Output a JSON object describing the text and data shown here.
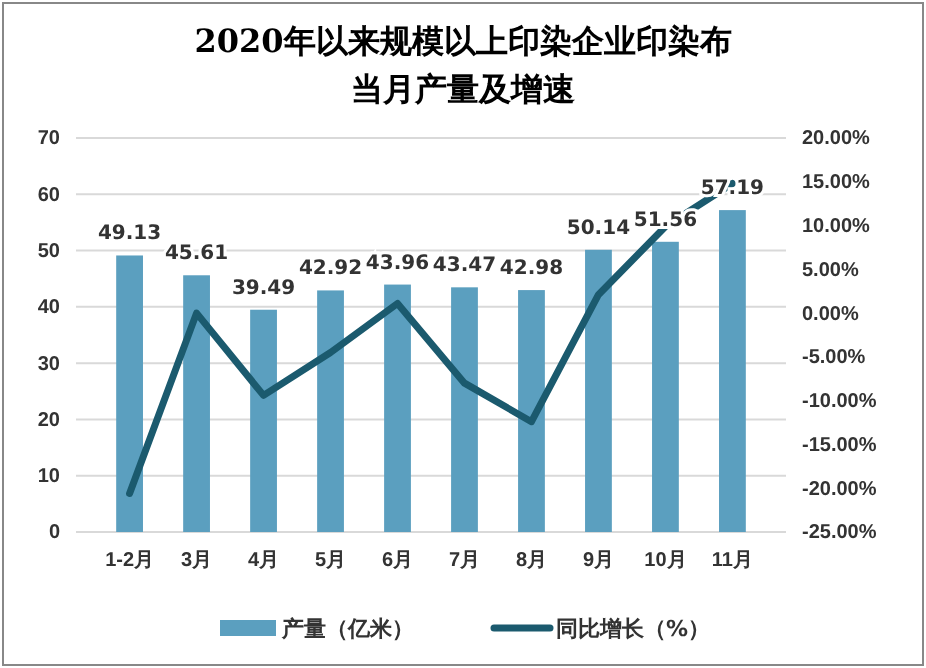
{
  "chart_data": {
    "type": "bar",
    "title": "2020年以来规模以上印染企业印染布当月产量及增速",
    "categories": [
      "1-2月",
      "3月",
      "4月",
      "5月",
      "6月",
      "7月",
      "8月",
      "9月",
      "10月",
      "11月"
    ],
    "series": [
      {
        "name": "产量（亿米）",
        "color": "#5b9fbf",
        "values": [
          49.13,
          45.61,
          39.49,
          42.92,
          43.96,
          43.47,
          42.98,
          50.14,
          51.56,
          57.19
        ],
        "value_labels": [
          "49.13",
          "45.61",
          "39.49",
          "42.92",
          "43.96",
          "43.47",
          "42.98",
          "50.14",
          "51.56",
          "57.19"
        ]
      },
      {
        "name": "同比增长（%）",
        "type": "line",
        "axis": "y2",
        "color": "#1b5a6e",
        "values": [
          -20.6,
          0,
          -9.4,
          -4.5,
          1.1,
          -8.0,
          -12.4,
          2.1,
          9.9,
          14.8
        ]
      }
    ],
    "ylim": [
      0,
      70
    ],
    "yticks": [
      0,
      10,
      20,
      30,
      40,
      50,
      60,
      70
    ],
    "y2lim": [
      -25,
      20
    ],
    "y2ticks": [
      {
        "value": -25,
        "label": "-25.00%"
      },
      {
        "value": -20,
        "label": "-20.00%"
      },
      {
        "value": -15,
        "label": "-15.00%"
      },
      {
        "value": -10,
        "label": "-10.00%"
      },
      {
        "value": -5,
        "label": "-5.00%"
      },
      {
        "value": 0,
        "label": "0.00%"
      },
      {
        "value": 5,
        "label": "5.00%"
      },
      {
        "value": 10,
        "label": "10.00%"
      },
      {
        "value": 15,
        "label": "15.00%"
      },
      {
        "value": 20,
        "label": "20.00%"
      }
    ],
    "grid": "y",
    "legend": "bottom",
    "marker": "none",
    "line_style": "solid"
  }
}
